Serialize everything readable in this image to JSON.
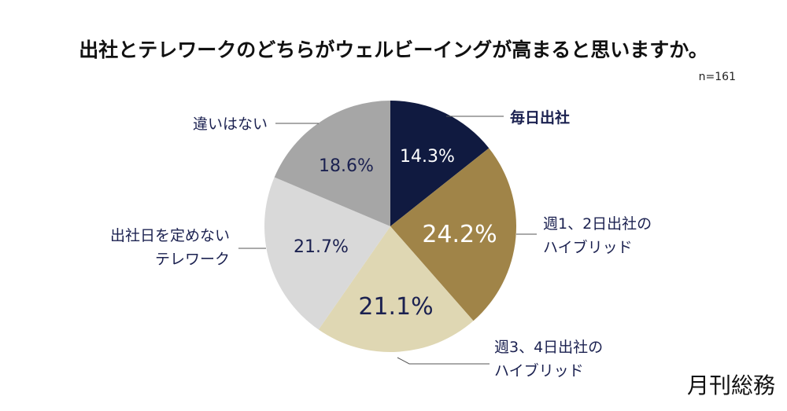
{
  "chart_data": {
    "type": "pie",
    "title": "出社とテレワークのどちらがウェルビーイングが高まると思いますか。",
    "sample_size": "n=161",
    "start": "top",
    "direction": "clockwise",
    "unit": "%",
    "slices": [
      {
        "label_lines": [
          "毎日出社"
        ],
        "value": 14.3,
        "value_label": "14.3%",
        "color": "#101a40",
        "value_color": "#ffffff"
      },
      {
        "label_lines": [
          "週1、2日出社の",
          "ハイブリッド"
        ],
        "value": 24.2,
        "value_label": "24.2%",
        "color": "#a08448",
        "value_color": "#ffffff"
      },
      {
        "label_lines": [
          "週3、4日出社の",
          "ハイブリッド"
        ],
        "value": 21.1,
        "value_label": "21.1%",
        "color": "#dfd7b3",
        "value_color": "#1b2150"
      },
      {
        "label_lines": [
          "出社日を定めない",
          "テレワーク"
        ],
        "value": 21.7,
        "value_label": "21.7%",
        "color": "#d9d9d9",
        "value_color": "#1b2150"
      },
      {
        "label_lines": [
          "違いはない"
        ],
        "value": 18.6,
        "value_label": "18.6%",
        "color": "#a6a6a6",
        "value_color": "#1b2150"
      }
    ]
  },
  "logo": "月刊総務"
}
